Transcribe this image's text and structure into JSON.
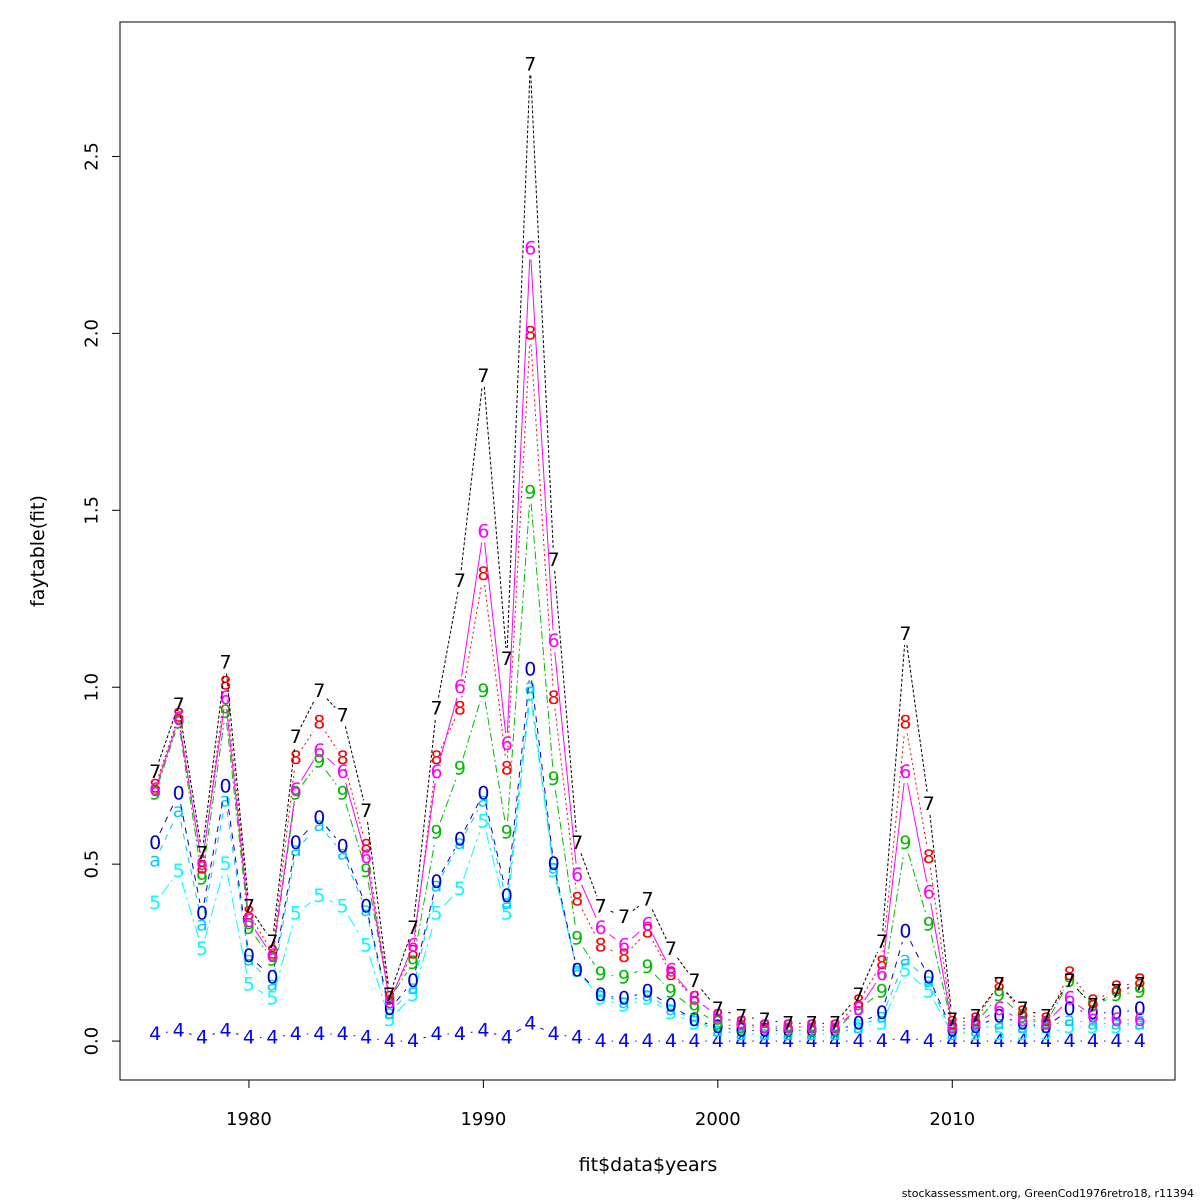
{
  "chart_data": {
    "type": "line",
    "xlabel": "fit$data$years",
    "ylabel": "faytable(fit)",
    "credit": "stockassessment.org, GreenCod1976retro18, r11394",
    "xlim": [
      1974.5,
      2019.5
    ],
    "ylim": [
      -0.11,
      2.88
    ],
    "x_ticks": [
      1980,
      1990,
      2000,
      2010
    ],
    "y_ticks": [
      0.0,
      0.5,
      1.0,
      1.5,
      2.0,
      2.5
    ],
    "y_tick_labels": [
      "0.0",
      "0.5",
      "1.0",
      "1.5",
      "2.0",
      "2.5"
    ],
    "grid": false,
    "legend": "none",
    "x": [
      1976,
      1977,
      1978,
      1979,
      1980,
      1981,
      1982,
      1983,
      1984,
      1985,
      1986,
      1987,
      1988,
      1989,
      1990,
      1991,
      1992,
      1993,
      1994,
      1995,
      1996,
      1997,
      1998,
      1999,
      2000,
      2001,
      2002,
      2003,
      2004,
      2005,
      2006,
      2007,
      2008,
      2009,
      2010,
      2011,
      2012,
      2013,
      2014,
      2015,
      2016,
      2017,
      2018
    ],
    "series": [
      {
        "symbol": "4",
        "color": "#0000FF",
        "dash": "",
        "values": [
          0.02,
          0.03,
          0.01,
          0.03,
          0.01,
          0.01,
          0.02,
          0.02,
          0.02,
          0.01,
          0.0,
          0.0,
          0.02,
          0.02,
          0.03,
          0.01,
          0.05,
          0.02,
          0.01,
          0.0,
          0.0,
          0.0,
          0.0,
          0.0,
          0.0,
          0.0,
          0.0,
          0.0,
          0.0,
          0.0,
          0.0,
          0.0,
          0.01,
          0.0,
          0.0,
          0.0,
          0.0,
          0.0,
          0.0,
          0.0,
          0.0,
          0.0,
          0.0
        ]
      },
      {
        "symbol": "5",
        "color": "#00FFFF",
        "dash": "12,4,3,4",
        "values": [
          0.39,
          0.48,
          0.26,
          0.5,
          0.16,
          0.12,
          0.36,
          0.41,
          0.38,
          0.27,
          0.06,
          0.13,
          0.36,
          0.43,
          0.62,
          0.36,
          0.98,
          0.48,
          0.2,
          0.12,
          0.1,
          0.12,
          0.08,
          0.05,
          0.03,
          0.02,
          0.02,
          0.02,
          0.02,
          0.02,
          0.04,
          0.05,
          0.2,
          0.14,
          0.02,
          0.02,
          0.02,
          0.02,
          0.02,
          0.04,
          0.04,
          0.04,
          0.05
        ]
      },
      {
        "symbol": "a",
        "color": "#00CCFF",
        "dash": "6,6",
        "values": [
          0.51,
          0.65,
          0.33,
          0.68,
          0.23,
          0.16,
          0.54,
          0.61,
          0.53,
          0.37,
          0.08,
          0.15,
          0.44,
          0.56,
          0.68,
          0.39,
          1.0,
          0.49,
          0.2,
          0.13,
          0.11,
          0.13,
          0.09,
          0.06,
          0.03,
          0.02,
          0.02,
          0.02,
          0.02,
          0.02,
          0.04,
          0.07,
          0.23,
          0.17,
          0.02,
          0.03,
          0.05,
          0.04,
          0.04,
          0.06,
          0.05,
          0.05,
          0.05
        ]
      },
      {
        "symbol": "0",
        "color": "#0000CC",
        "dash": "6,6",
        "values": [
          0.56,
          0.7,
          0.36,
          0.72,
          0.24,
          0.18,
          0.56,
          0.63,
          0.55,
          0.38,
          0.09,
          0.17,
          0.45,
          0.57,
          0.7,
          0.41,
          1.05,
          0.5,
          0.2,
          0.13,
          0.12,
          0.14,
          0.1,
          0.06,
          0.04,
          0.03,
          0.03,
          0.03,
          0.03,
          0.03,
          0.05,
          0.08,
          0.31,
          0.18,
          0.03,
          0.04,
          0.07,
          0.05,
          0.04,
          0.09,
          0.08,
          0.08,
          0.09
        ]
      },
      {
        "symbol": "9",
        "color": "#00BB00",
        "dash": "8,3,2,3",
        "values": [
          0.7,
          0.9,
          0.46,
          0.93,
          0.32,
          0.23,
          0.7,
          0.79,
          0.7,
          0.48,
          0.12,
          0.22,
          0.59,
          0.77,
          0.99,
          0.59,
          1.55,
          0.74,
          0.29,
          0.19,
          0.18,
          0.21,
          0.14,
          0.09,
          0.05,
          0.04,
          0.04,
          0.03,
          0.03,
          0.03,
          0.09,
          0.14,
          0.56,
          0.33,
          0.04,
          0.05,
          0.13,
          0.07,
          0.05,
          0.17,
          0.1,
          0.13,
          0.14
        ]
      },
      {
        "symbol": "8",
        "color": "#FF0000",
        "dash": "2,3",
        "values": [
          0.72,
          0.92,
          0.49,
          1.01,
          0.36,
          0.25,
          0.8,
          0.9,
          0.8,
          0.55,
          0.12,
          0.25,
          0.8,
          0.94,
          1.32,
          0.77,
          2.0,
          0.97,
          0.4,
          0.27,
          0.24,
          0.31,
          0.19,
          0.12,
          0.07,
          0.05,
          0.04,
          0.04,
          0.04,
          0.04,
          0.11,
          0.22,
          0.9,
          0.52,
          0.05,
          0.06,
          0.16,
          0.08,
          0.06,
          0.19,
          0.11,
          0.15,
          0.17
        ]
      },
      {
        "symbol": "6",
        "color": "#FF00FF",
        "dash": "",
        "values": [
          0.71,
          0.91,
          0.5,
          0.97,
          0.34,
          0.24,
          0.71,
          0.82,
          0.76,
          0.52,
          0.11,
          0.27,
          0.76,
          1.0,
          1.44,
          0.84,
          2.24,
          1.13,
          0.47,
          0.32,
          0.27,
          0.33,
          0.2,
          0.12,
          0.07,
          0.05,
          0.04,
          0.04,
          0.04,
          0.04,
          0.09,
          0.19,
          0.76,
          0.42,
          0.04,
          0.05,
          0.09,
          0.06,
          0.05,
          0.12,
          0.07,
          0.06,
          0.06
        ]
      },
      {
        "symbol": "7",
        "color": "#000000",
        "dash": "3,2",
        "values": [
          0.76,
          0.95,
          0.53,
          1.07,
          0.38,
          0.28,
          0.86,
          0.99,
          0.92,
          0.65,
          0.13,
          0.32,
          0.94,
          1.3,
          1.88,
          1.08,
          2.76,
          1.36,
          0.56,
          0.38,
          0.35,
          0.4,
          0.26,
          0.17,
          0.09,
          0.07,
          0.06,
          0.05,
          0.05,
          0.05,
          0.13,
          0.28,
          1.15,
          0.67,
          0.06,
          0.07,
          0.16,
          0.09,
          0.07,
          0.17,
          0.1,
          0.14,
          0.16
        ]
      }
    ]
  }
}
